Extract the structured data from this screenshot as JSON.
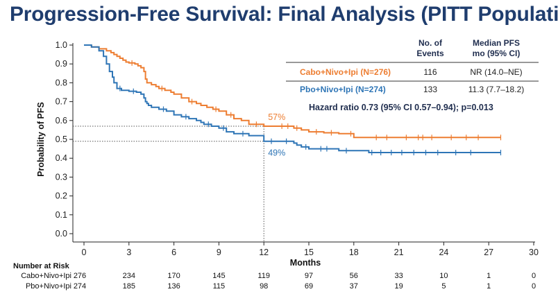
{
  "title": "Progression-Free Survival: Final Analysis (PITT Population",
  "legend_table": {
    "headers": {
      "events": [
        "No. of",
        "Events"
      ],
      "median": [
        "Median PFS",
        "mo (95% CI)"
      ]
    },
    "rows": [
      {
        "label": "Cabo+Nivo+Ipi (N=276)",
        "events": "116",
        "median": "NR (14.0–NE)",
        "color": "#ed7d31"
      },
      {
        "label": "Pbo+Nivo+Ipi (N=274)",
        "events": "133",
        "median": "11.3 (7.7–18.2)",
        "color": "#2e75b6"
      }
    ],
    "hazard_ratio": "Hazard ratio 0.73 (95% CI 0.57–0.94); p=0.013"
  },
  "annotations": [
    {
      "text": "57%",
      "x": 12,
      "y": 0.57,
      "color": "#ed7d31"
    },
    {
      "text": "49%",
      "x": 12,
      "y": 0.49,
      "color": "#2e75b6"
    }
  ],
  "risk_table": {
    "title": "Number at Risk",
    "rows": [
      {
        "label": "Cabo+Nivo+Ipi",
        "values": [
          "276",
          "234",
          "170",
          "145",
          "119",
          "97",
          "56",
          "33",
          "10",
          "1",
          "0"
        ]
      },
      {
        "label": "Pbo+Nivo+Ipi",
        "values": [
          "274",
          "185",
          "136",
          "115",
          "98",
          "69",
          "37",
          "19",
          "5",
          "1",
          "0"
        ]
      }
    ]
  },
  "chart_data": {
    "type": "line",
    "xlabel": "Months",
    "ylabel": "Probability of PFS",
    "xlim": [
      0,
      30
    ],
    "ylim": [
      0,
      1.0
    ],
    "xticks": [
      0,
      3,
      6,
      9,
      12,
      15,
      18,
      21,
      24,
      27,
      30
    ],
    "yticks": [
      0.0,
      0.1,
      0.2,
      0.3,
      0.4,
      0.5,
      0.6,
      0.7,
      0.8,
      0.9,
      1.0
    ],
    "grid": false,
    "reference_lines": {
      "x": 12,
      "y": [
        0.57,
        0.49
      ]
    },
    "series": [
      {
        "name": "Cabo+Nivo+Ipi",
        "color": "#ed7d31",
        "x": [
          0,
          0.5,
          1.0,
          1.5,
          1.8,
          2.0,
          2.2,
          2.4,
          2.6,
          2.8,
          3.0,
          3.4,
          3.6,
          3.8,
          4.0,
          4.1,
          4.2,
          4.5,
          4.8,
          5.0,
          5.4,
          5.8,
          6.0,
          6.5,
          7.0,
          7.5,
          7.8,
          8.2,
          8.6,
          9.0,
          9.5,
          10.0,
          10.5,
          11.0,
          12.0,
          13.0,
          14.0,
          14.5,
          15.0,
          16.0,
          17.0,
          17.5,
          18.0,
          20.0,
          22.0,
          24.0,
          26.0,
          27.8
        ],
        "y": [
          1.0,
          0.99,
          0.98,
          0.97,
          0.96,
          0.95,
          0.94,
          0.93,
          0.92,
          0.91,
          0.905,
          0.9,
          0.89,
          0.88,
          0.86,
          0.82,
          0.8,
          0.79,
          0.78,
          0.77,
          0.76,
          0.75,
          0.74,
          0.72,
          0.7,
          0.69,
          0.68,
          0.67,
          0.66,
          0.65,
          0.63,
          0.61,
          0.6,
          0.58,
          0.57,
          0.57,
          0.56,
          0.55,
          0.54,
          0.535,
          0.53,
          0.53,
          0.51,
          0.51,
          0.51,
          0.51,
          0.51,
          0.51
        ],
        "censor_x": [
          3.2,
          5.2,
          7.2,
          8.8,
          9.8,
          11.5,
          13.2,
          13.6,
          14.2,
          15.5,
          16.5,
          17.8,
          19.5,
          20.2,
          21.5,
          22.3,
          22.6,
          23.2,
          24.5,
          25.5,
          26.3,
          27.8
        ]
      },
      {
        "name": "Pbo+Nivo+Ipi",
        "color": "#2e75b6",
        "x": [
          0,
          0.5,
          1.0,
          1.3,
          1.5,
          1.7,
          1.9,
          2.0,
          2.2,
          2.5,
          3.0,
          3.5,
          3.8,
          4.0,
          4.1,
          4.2,
          4.3,
          4.5,
          5.0,
          5.5,
          6.0,
          6.5,
          7.0,
          7.5,
          7.8,
          8.0,
          8.5,
          9.0,
          9.5,
          10.0,
          11.0,
          12.0,
          13.0,
          14.0,
          14.2,
          14.5,
          15.0,
          16.0,
          17.0,
          18.0,
          19.0,
          20.0,
          22.0,
          24.0,
          26.0,
          27.8
        ],
        "y": [
          1.0,
          0.99,
          0.97,
          0.94,
          0.9,
          0.86,
          0.83,
          0.8,
          0.77,
          0.76,
          0.755,
          0.75,
          0.74,
          0.72,
          0.7,
          0.69,
          0.68,
          0.67,
          0.66,
          0.65,
          0.63,
          0.62,
          0.61,
          0.6,
          0.59,
          0.58,
          0.57,
          0.56,
          0.54,
          0.53,
          0.52,
          0.49,
          0.49,
          0.48,
          0.47,
          0.46,
          0.45,
          0.45,
          0.44,
          0.44,
          0.43,
          0.43,
          0.43,
          0.43,
          0.43,
          0.43
        ],
        "censor_x": [
          2.4,
          3.3,
          5.3,
          6.8,
          8.3,
          9.3,
          10.6,
          12.5,
          13.5,
          14.8,
          15.8,
          16.2,
          17.5,
          19.2,
          19.8,
          20.5,
          21.2,
          22.0,
          22.8,
          23.6,
          24.8,
          25.8,
          27.8
        ]
      }
    ]
  }
}
